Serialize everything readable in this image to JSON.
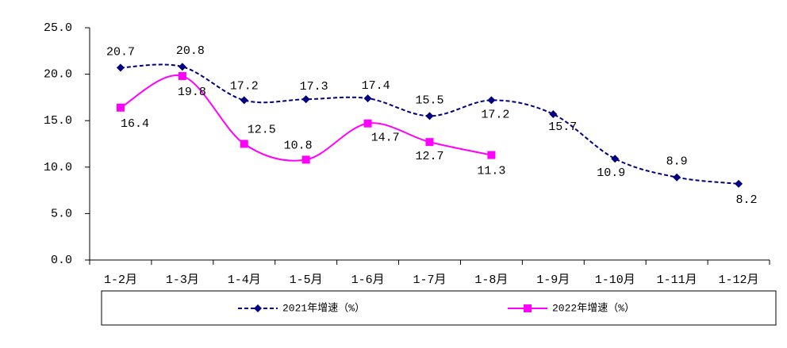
{
  "chart_data": {
    "type": "line",
    "categories": [
      "1-2月",
      "1-3月",
      "1-4月",
      "1-5月",
      "1-6月",
      "1-7月",
      "1-8月",
      "1-9月",
      "1-10月",
      "1-11月",
      "1-12月"
    ],
    "series": [
      {
        "name": "2021年增速（%）",
        "color": "#000080",
        "dashed": true,
        "marker": "diamond",
        "values": [
          20.7,
          20.8,
          17.2,
          17.3,
          17.4,
          15.5,
          17.2,
          15.7,
          10.9,
          8.9,
          8.2
        ]
      },
      {
        "name": "2022年增速（%）",
        "color": "#ff00ff",
        "dashed": false,
        "marker": "square",
        "values": [
          16.4,
          19.8,
          12.5,
          10.8,
          14.7,
          12.7,
          11.3,
          null,
          null,
          null,
          null
        ]
      }
    ],
    "ylim": [
      0,
      25
    ],
    "yticks": [
      {
        "value": 0,
        "label": "0.0"
      },
      {
        "value": 5,
        "label": "5.0"
      },
      {
        "value": 10,
        "label": "10.0"
      },
      {
        "value": 15,
        "label": "15.0"
      },
      {
        "value": 20,
        "label": "20.0"
      },
      {
        "value": 25,
        "label": "25.0"
      }
    ],
    "grid": false,
    "legend": "bottom"
  }
}
